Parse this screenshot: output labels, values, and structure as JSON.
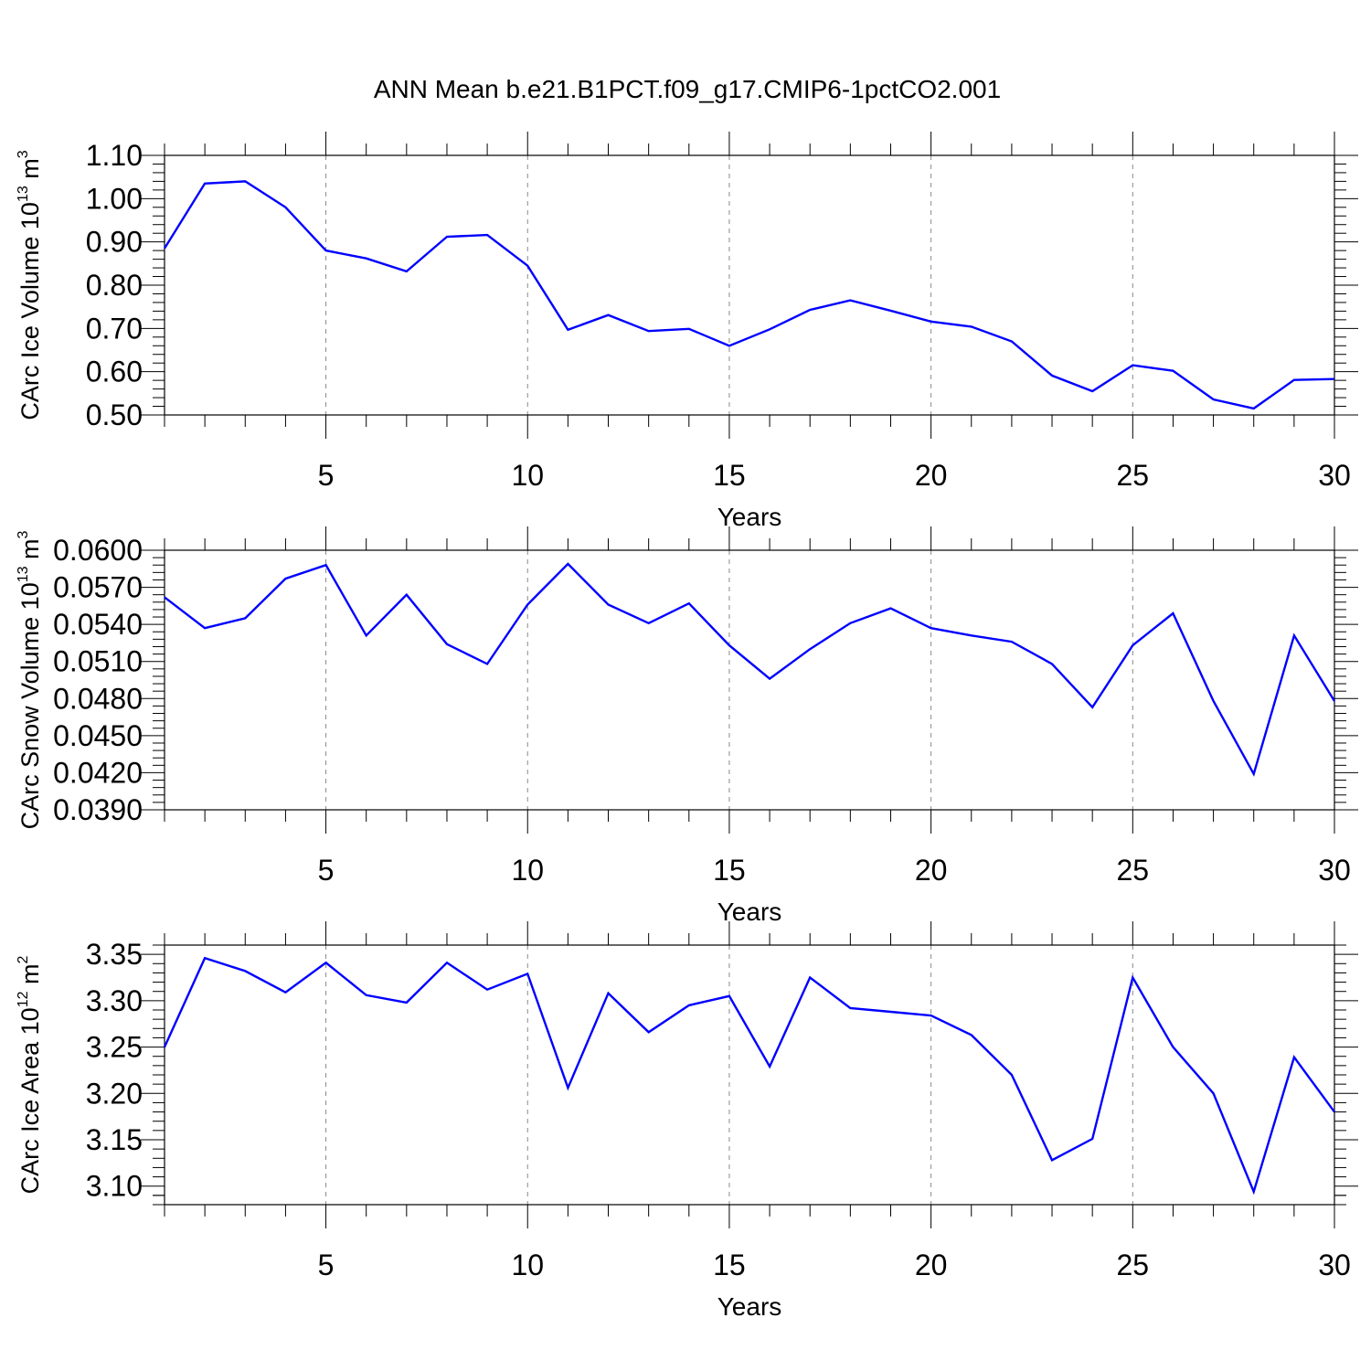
{
  "title": "ANN Mean b.e21.B1PCT.f09_g17.CMIP6-1pctCO2.001",
  "chart_data": [
    {
      "type": "line",
      "xlabel": "Years",
      "ylabel": {
        "text": "CArc Ice Volume 10",
        "exp": "13",
        "unit": " m",
        "unit_exp": "3"
      },
      "xlim": [
        1,
        30
      ],
      "ylim": [
        0.5,
        1.1
      ],
      "x_ticks": [
        5,
        10,
        15,
        20,
        25,
        30
      ],
      "x_tick_labels": [
        "5",
        "10",
        "15",
        "20",
        "25",
        "30"
      ],
      "y_ticks": [
        0.5,
        0.6,
        0.7,
        0.8,
        0.9,
        1.0,
        1.1
      ],
      "y_tick_labels": [
        "0.50",
        "0.60",
        "0.70",
        "0.80",
        "0.90",
        "1.00",
        "1.10"
      ],
      "grid": "x-dashed",
      "line_color": "#0000ff",
      "x": [
        1,
        2,
        3,
        4,
        5,
        6,
        7,
        8,
        9,
        10,
        11,
        12,
        13,
        14,
        15,
        16,
        17,
        18,
        19,
        20,
        21,
        22,
        23,
        24,
        25,
        26,
        27,
        28,
        29,
        30
      ],
      "y": [
        0.885,
        1.035,
        1.04,
        0.98,
        0.88,
        0.862,
        0.832,
        0.912,
        0.916,
        0.845,
        0.697,
        0.731,
        0.694,
        0.699,
        0.66,
        0.698,
        0.743,
        0.765,
        0.741,
        0.716,
        0.704,
        0.67,
        0.591,
        0.555,
        0.615,
        0.602,
        0.536,
        0.515,
        0.581,
        0.583
      ]
    },
    {
      "type": "line",
      "xlabel": "Years",
      "ylabel": {
        "text": "CArc Snow Volume 10",
        "exp": "13",
        "unit": " m",
        "unit_exp": "3"
      },
      "xlim": [
        1,
        30
      ],
      "ylim": [
        0.039,
        0.06
      ],
      "x_ticks": [
        5,
        10,
        15,
        20,
        25,
        30
      ],
      "x_tick_labels": [
        "5",
        "10",
        "15",
        "20",
        "25",
        "30"
      ],
      "y_ticks": [
        0.039,
        0.042,
        0.045,
        0.048,
        0.051,
        0.054,
        0.057,
        0.06
      ],
      "y_tick_labels": [
        "0.0390",
        "0.0420",
        "0.0450",
        "0.0480",
        "0.0510",
        "0.0540",
        "0.0570",
        "0.0600"
      ],
      "grid": "x-dashed",
      "line_color": "#0000ff",
      "x": [
        1,
        2,
        3,
        4,
        5,
        6,
        7,
        8,
        9,
        10,
        11,
        12,
        13,
        14,
        15,
        16,
        17,
        18,
        19,
        20,
        21,
        22,
        23,
        24,
        25,
        26,
        27,
        28,
        29,
        30
      ],
      "y": [
        0.0562,
        0.0537,
        0.0545,
        0.0577,
        0.0588,
        0.0531,
        0.0564,
        0.0524,
        0.0508,
        0.0556,
        0.0589,
        0.0556,
        0.0541,
        0.0557,
        0.0523,
        0.0496,
        0.052,
        0.0541,
        0.0553,
        0.0537,
        0.0531,
        0.0526,
        0.0508,
        0.0473,
        0.0523,
        0.0549,
        0.0478,
        0.0419,
        0.0531,
        0.0478
      ]
    },
    {
      "type": "line",
      "xlabel": "Years",
      "ylabel": {
        "text": "CArc Ice Area 10",
        "exp": "12",
        "unit": " m",
        "unit_exp": "2"
      },
      "xlim": [
        1,
        30
      ],
      "ylim": [
        3.08,
        3.36
      ],
      "x_ticks": [
        5,
        10,
        15,
        20,
        25,
        30
      ],
      "x_tick_labels": [
        "5",
        "10",
        "15",
        "20",
        "25",
        "30"
      ],
      "y_ticks": [
        3.1,
        3.15,
        3.2,
        3.25,
        3.3,
        3.35
      ],
      "y_tick_labels": [
        "3.10",
        "3.15",
        "3.20",
        "3.25",
        "3.30",
        "3.35"
      ],
      "grid": "x-dashed",
      "line_color": "#0000ff",
      "x": [
        1,
        2,
        3,
        4,
        5,
        6,
        7,
        8,
        9,
        10,
        11,
        12,
        13,
        14,
        15,
        16,
        17,
        18,
        19,
        20,
        21,
        22,
        23,
        24,
        25,
        26,
        27,
        28,
        29,
        30
      ],
      "y": [
        3.25,
        3.346,
        3.332,
        3.309,
        3.341,
        3.306,
        3.298,
        3.341,
        3.312,
        3.329,
        3.206,
        3.308,
        3.266,
        3.295,
        3.305,
        3.229,
        3.325,
        3.292,
        3.288,
        3.284,
        3.263,
        3.22,
        3.128,
        3.151,
        3.325,
        3.25,
        3.2,
        3.094,
        3.239,
        3.18
      ]
    }
  ]
}
